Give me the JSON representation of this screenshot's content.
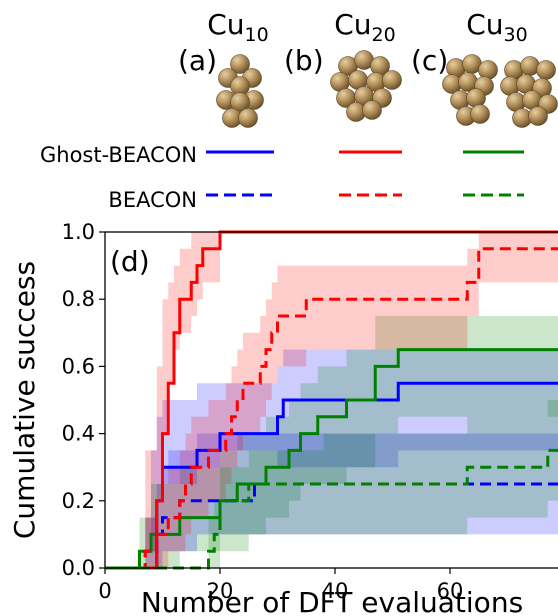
{
  "header": {
    "clusters": [
      {
        "panel": "(a)",
        "base": "Cu",
        "sub": "10"
      },
      {
        "panel": "(b)",
        "base": "Cu",
        "sub": "20"
      },
      {
        "panel": "(c)",
        "base": "Cu",
        "sub": "30"
      }
    ],
    "legend_rows": [
      {
        "label": "Ghost-BEACON",
        "dash": "solid"
      },
      {
        "label": "BEACON",
        "dash": "dashed"
      }
    ],
    "colors": {
      "Cu10": "#0000ff",
      "Cu20": "#ff0000",
      "Cu30": "#008000"
    },
    "atom_color": "#b08d57"
  },
  "chart_data": {
    "type": "line",
    "panel_label": "(d)",
    "xlabel": "Number of DFT evaluations",
    "ylabel": "Cumulative success",
    "xlim": [
      0,
      80
    ],
    "ylim": [
      0,
      1.0
    ],
    "xticks": [
      0,
      20,
      40,
      60
    ],
    "yticks": [
      0.0,
      0.2,
      0.4,
      0.6,
      0.8,
      1.0
    ],
    "ytick_labels": [
      "0.0",
      "0.2",
      "0.4",
      "0.6",
      "0.8",
      "1.0"
    ],
    "grid": false,
    "series": [
      {
        "name": "Ghost-BEACON Cu10",
        "color": "#0000ff",
        "dash": "solid",
        "x": [
          0,
          8,
          9,
          10,
          16,
          20,
          30,
          31,
          36,
          51,
          80
        ],
        "y": [
          0,
          0,
          0.2,
          0.3,
          0.35,
          0.4,
          0.45,
          0.5,
          0.5,
          0.55,
          0.55
        ],
        "band": [
          [
            0,
            0
          ],
          [
            0.05,
            0.35
          ],
          [
            0.2,
            0.45
          ],
          [
            0.25,
            0.5
          ],
          [
            0.3,
            0.55
          ],
          [
            0.35,
            0.55
          ],
          [
            0.3,
            0.6
          ],
          [
            0.3,
            0.65
          ],
          [
            0.3,
            0.65
          ],
          [
            0.35,
            0.65
          ],
          [
            0.35,
            0.65
          ]
        ]
      },
      {
        "name": "Ghost-BEACON Cu20",
        "color": "#ff0000",
        "dash": "solid",
        "x": [
          0,
          7,
          9,
          10,
          11,
          12,
          13,
          14,
          15,
          16,
          17,
          18,
          20,
          80
        ],
        "y": [
          0,
          0,
          0.2,
          0.4,
          0.55,
          0.7,
          0.8,
          0.8,
          0.85,
          0.9,
          0.95,
          0.95,
          1.0,
          1.0
        ],
        "band": [
          [
            0,
            0
          ],
          [
            0.05,
            0.35
          ],
          [
            0.25,
            0.6
          ],
          [
            0.4,
            0.8
          ],
          [
            0.55,
            0.85
          ],
          [
            0.65,
            0.9
          ],
          [
            0.7,
            0.95
          ],
          [
            0.7,
            0.95
          ],
          [
            0.75,
            1.0
          ],
          [
            0.8,
            1.0
          ],
          [
            0.85,
            1.0
          ],
          [
            0.85,
            1.0
          ],
          [
            1.0,
            1.0
          ],
          [
            1.0,
            1.0
          ]
        ]
      },
      {
        "name": "Ghost-BEACON Cu30",
        "color": "#008000",
        "dash": "solid",
        "x": [
          0,
          6,
          8,
          13,
          20,
          23,
          28,
          32,
          34,
          37,
          42,
          47,
          51,
          80
        ],
        "y": [
          0,
          0.05,
          0.1,
          0.15,
          0.2,
          0.25,
          0.3,
          0.35,
          0.4,
          0.45,
          0.5,
          0.6,
          0.65,
          0.65
        ],
        "band": [
          [
            0,
            0
          ],
          [
            0,
            0.15
          ],
          [
            0,
            0.25
          ],
          [
            0.05,
            0.3
          ],
          [
            0.1,
            0.35
          ],
          [
            0.1,
            0.4
          ],
          [
            0.15,
            0.45
          ],
          [
            0.2,
            0.5
          ],
          [
            0.25,
            0.55
          ],
          [
            0.25,
            0.6
          ],
          [
            0.3,
            0.65
          ],
          [
            0.4,
            0.75
          ],
          [
            0.45,
            0.75
          ],
          [
            0.45,
            0.75
          ]
        ]
      },
      {
        "name": "BEACON Cu10",
        "color": "#0000ff",
        "dash": "dashed",
        "x": [
          0,
          7,
          9,
          10,
          11,
          13,
          16,
          20,
          26,
          80
        ],
        "y": [
          0,
          0.05,
          0.1,
          0.15,
          0.15,
          0.2,
          0.2,
          0.2,
          0.25,
          0.25
        ],
        "band": [
          [
            0,
            0
          ],
          [
            0,
            0.15
          ],
          [
            0,
            0.25
          ],
          [
            0.05,
            0.3
          ],
          [
            0.05,
            0.35
          ],
          [
            0.05,
            0.35
          ],
          [
            0.1,
            0.4
          ],
          [
            0.1,
            0.4
          ],
          [
            0.1,
            0.4
          ],
          [
            0.1,
            0.4
          ]
        ]
      },
      {
        "name": "BEACON Cu20",
        "color": "#ff0000",
        "dash": "dashed",
        "x": [
          0,
          7,
          9,
          11,
          13,
          14,
          15,
          18,
          20,
          21,
          22,
          23,
          24,
          27,
          28,
          29,
          30,
          31,
          33,
          35,
          51,
          63,
          65,
          80
        ],
        "y": [
          0,
          0.05,
          0.1,
          0.15,
          0.2,
          0.25,
          0.3,
          0.35,
          0.35,
          0.4,
          0.45,
          0.5,
          0.55,
          0.6,
          0.65,
          0.7,
          0.75,
          0.75,
          0.75,
          0.8,
          0.8,
          0.85,
          0.95,
          0.95
        ],
        "band": [
          [
            0,
            0
          ],
          [
            0,
            0.15
          ],
          [
            0,
            0.25
          ],
          [
            0.05,
            0.3
          ],
          [
            0.05,
            0.35
          ],
          [
            0.1,
            0.4
          ],
          [
            0.15,
            0.45
          ],
          [
            0.2,
            0.5
          ],
          [
            0.2,
            0.5
          ],
          [
            0.25,
            0.55
          ],
          [
            0.3,
            0.6
          ],
          [
            0.35,
            0.65
          ],
          [
            0.4,
            0.7
          ],
          [
            0.45,
            0.75
          ],
          [
            0.5,
            0.8
          ],
          [
            0.55,
            0.85
          ],
          [
            0.6,
            0.9
          ],
          [
            0.6,
            0.9
          ],
          [
            0.6,
            0.9
          ],
          [
            0.65,
            0.9
          ],
          [
            0.65,
            0.9
          ],
          [
            0.75,
            0.95
          ],
          [
            0.85,
            1.0
          ],
          [
            0.85,
            1.0
          ]
        ]
      },
      {
        "name": "BEACON Cu30",
        "color": "#008000",
        "dash": "dashed",
        "x": [
          0,
          16,
          18,
          19,
          20,
          25,
          38,
          63,
          75,
          77,
          80
        ],
        "y": [
          0,
          0,
          0.05,
          0.1,
          0.2,
          0.25,
          0.25,
          0.3,
          0.3,
          0.35,
          0.35
        ],
        "band": [
          [
            0,
            0
          ],
          [
            0,
            0
          ],
          [
            0,
            0.15
          ],
          [
            0,
            0.2
          ],
          [
            0.05,
            0.3
          ],
          [
            0.1,
            0.35
          ],
          [
            0.1,
            0.4
          ],
          [
            0.15,
            0.45
          ],
          [
            0.15,
            0.45
          ],
          [
            0.2,
            0.5
          ],
          [
            0.2,
            0.5
          ]
        ]
      }
    ]
  }
}
